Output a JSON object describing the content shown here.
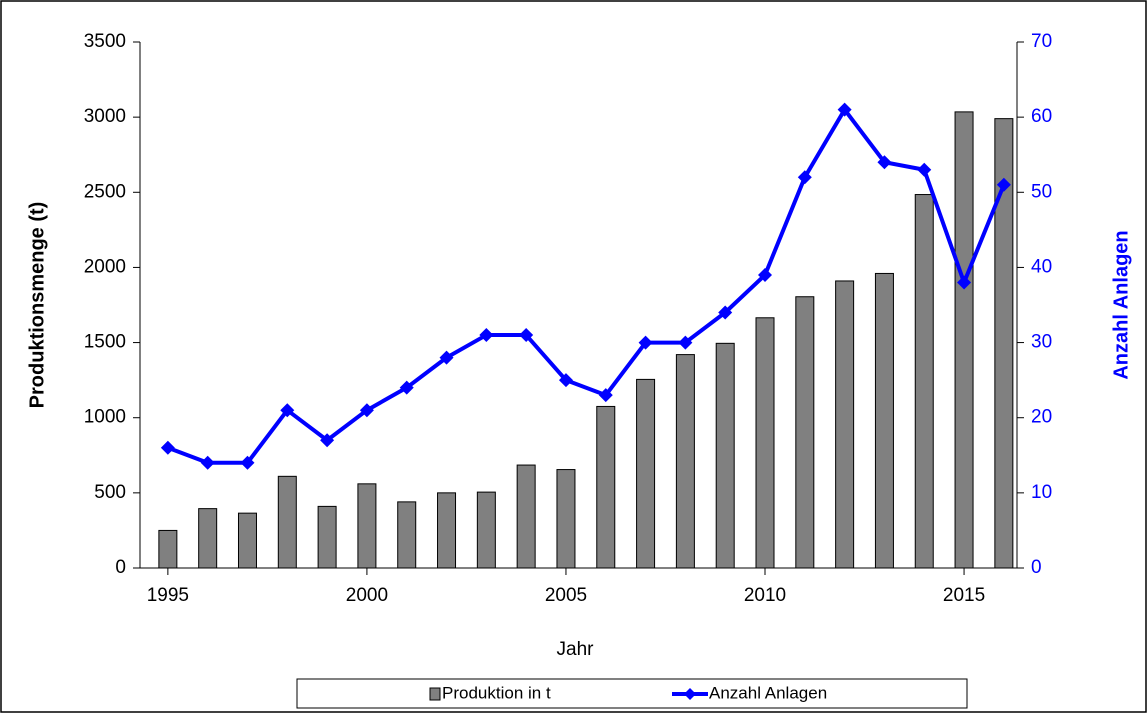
{
  "chart_data": {
    "type": "combo",
    "x_label": "Jahr",
    "y_label": "Produktionsmenge (t)",
    "y2_label": "Anzahl Anlagen",
    "x": [
      1995,
      1996,
      1997,
      1998,
      1999,
      2000,
      2001,
      2002,
      2003,
      2004,
      2005,
      2006,
      2007,
      2008,
      2009,
      2010,
      2011,
      2012,
      2013,
      2014,
      2015,
      2016
    ],
    "series": [
      {
        "name": "Produktion in t",
        "type": "bar",
        "color": "#808080",
        "values": [
          250,
          395,
          365,
          610,
          410,
          560,
          440,
          500,
          505,
          685,
          655,
          1075,
          1255,
          1420,
          1495,
          1665,
          1805,
          1910,
          1960,
          2485,
          3035,
          2990
        ]
      },
      {
        "name": "Anzahl Anlagen",
        "type": "line",
        "axis": "y2",
        "color": "#0000ff",
        "values": [
          16,
          14,
          14,
          21,
          17,
          21,
          24,
          28,
          31,
          31,
          25,
          23,
          30,
          30,
          34,
          39,
          52,
          61,
          54,
          53,
          38,
          51
        ]
      }
    ],
    "xlim": [
      1994.3,
      2016.33
    ],
    "xticks": [
      1995,
      2000,
      2005,
      2010,
      2015
    ],
    "ylim": [
      0,
      3500
    ],
    "yticks": [
      0,
      500,
      1000,
      1500,
      2000,
      2500,
      3000,
      3500
    ],
    "y2lim": [
      0,
      70
    ],
    "y2ticks": [
      0,
      10,
      20,
      30,
      40,
      50,
      60,
      70
    ],
    "grid": false,
    "legend": "bottom"
  }
}
